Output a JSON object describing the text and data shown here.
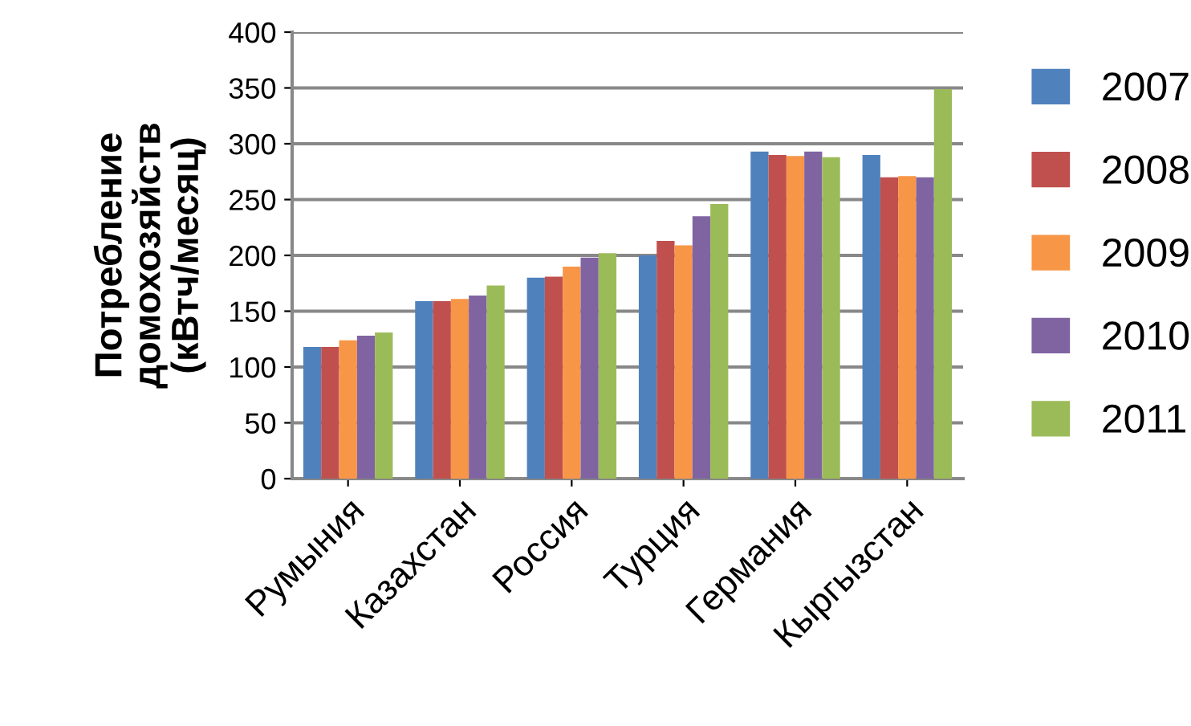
{
  "chart_data": {
    "type": "bar",
    "ylabel": "Потребление\nдомохозяйств\n(кВтч/месяц)",
    "categories": [
      "Румыния",
      "Казахстан",
      "Россия",
      "Турция",
      "Германия",
      "Кыргызстан"
    ],
    "series": [
      {
        "name": "2007",
        "color": "#4f81bd",
        "values": [
          118,
          159,
          180,
          200,
          293,
          290
        ]
      },
      {
        "name": "2008",
        "color": "#c0504d",
        "values": [
          118,
          159,
          181,
          213,
          290,
          270
        ]
      },
      {
        "name": "2009",
        "color": "#f79646",
        "values": [
          124,
          161,
          190,
          209,
          289,
          271
        ]
      },
      {
        "name": "2010",
        "color": "#8064a2",
        "values": [
          128,
          164,
          198,
          235,
          293,
          270
        ]
      },
      {
        "name": "2011",
        "color": "#9bbb59",
        "values": [
          131,
          173,
          202,
          246,
          288,
          349
        ]
      }
    ],
    "ylim": [
      0,
      400
    ],
    "yticks": [
      0,
      50,
      100,
      150,
      200,
      250,
      300,
      350,
      400
    ],
    "grid": "y",
    "legend": "right"
  }
}
